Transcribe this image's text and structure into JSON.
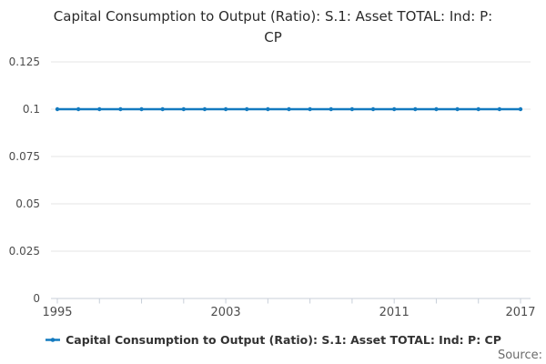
{
  "header": {
    "title": "Capital Consumption to Output (Ratio): S.1: Asset TOTAL: Ind: P: CP"
  },
  "legend": {
    "items": [
      {
        "label": "Capital Consumption to Output (Ratio): S.1: Asset TOTAL: Ind: P: CP",
        "color": "#137abf"
      }
    ]
  },
  "footer": {
    "source_label": "Source:"
  },
  "colors": {
    "series": "#137abf",
    "grid": "#e6e6e6",
    "axis": "#c8cfd9",
    "tick_label": "#4d4d4d",
    "title_text": "#2b2b2b",
    "legend_text": "#333333",
    "source_text": "#6b6b6b",
    "background": "#ffffff"
  },
  "chart_data": {
    "type": "line",
    "title": "Capital Consumption to Output (Ratio): S.1: Asset TOTAL: Ind: P: CP",
    "x": [
      1995,
      1996,
      1997,
      1998,
      1999,
      2000,
      2001,
      2002,
      2003,
      2004,
      2005,
      2006,
      2007,
      2008,
      2009,
      2010,
      2011,
      2012,
      2013,
      2014,
      2015,
      2016,
      2017
    ],
    "series": [
      {
        "name": "Capital Consumption to Output (Ratio): S.1: Asset TOTAL: Ind: P: CP",
        "values": [
          0.1,
          0.1,
          0.1,
          0.1,
          0.1,
          0.1,
          0.1,
          0.1,
          0.1,
          0.1,
          0.1,
          0.1,
          0.1,
          0.1,
          0.1,
          0.1,
          0.1,
          0.1,
          0.1,
          0.1,
          0.1,
          0.1,
          0.1
        ]
      }
    ],
    "xlabel": "",
    "ylabel": "",
    "xlim": [
      1995,
      2017
    ],
    "ylim": [
      0,
      0.125
    ],
    "yticks": [
      0,
      0.025,
      0.05,
      0.075,
      0.1,
      0.125
    ],
    "ytick_labels": [
      "0",
      "0.025",
      "0.05",
      "0.075",
      "0.1",
      "0.125"
    ],
    "xticks": [
      1995,
      1997,
      1999,
      2001,
      2003,
      2005,
      2007,
      2009,
      2011,
      2013,
      2015,
      2017
    ],
    "xtick_labels": [
      {
        "x": 1995,
        "label": "1995"
      },
      {
        "x": 2003,
        "label": "2003"
      },
      {
        "x": 2011,
        "label": "2011"
      },
      {
        "x": 2017,
        "label": "2017"
      }
    ],
    "grid": true,
    "legend_position": "bottom",
    "marker": "circle"
  }
}
